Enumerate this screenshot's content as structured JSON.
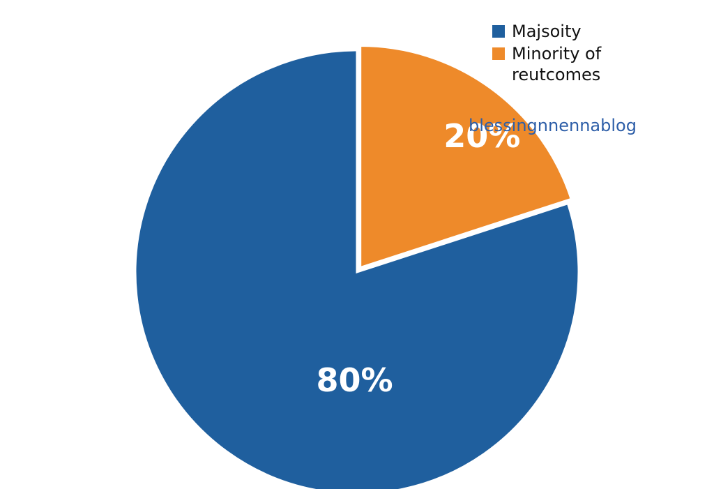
{
  "chart_data": {
    "type": "pie",
    "categories": [
      "Minority of reutcomes",
      "Majsoity"
    ],
    "values": [
      20,
      80
    ],
    "value_labels": [
      "20%",
      "80%"
    ],
    "colors": [
      "#ee8a2a",
      "#1f5f9e"
    ],
    "watermark": "blessingnnennablog"
  }
}
